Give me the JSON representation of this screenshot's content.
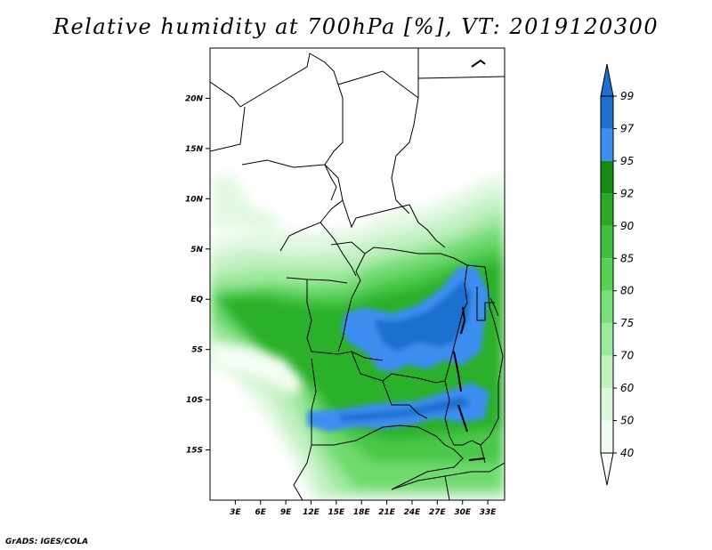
{
  "title": "Relative humidity at 700hPa [%], VT: 2019120300",
  "credit": "GrADS: IGES/COLA",
  "map": {
    "lon_range": [
      0,
      35
    ],
    "lat_range": [
      -20,
      25
    ],
    "lon_ticks": [
      "3E",
      "6E",
      "9E",
      "12E",
      "15E",
      "18E",
      "21E",
      "24E",
      "27E",
      "30E",
      "33E"
    ],
    "lat_ticks": [
      "20N",
      "15N",
      "10N",
      "5N",
      "EQ",
      "5S",
      "10S",
      "15S"
    ]
  },
  "colorbar": {
    "labels": [
      "99",
      "97",
      "95",
      "92",
      "90",
      "85",
      "80",
      "75",
      "70",
      "60",
      "50",
      "40"
    ],
    "colors": [
      "#1e6fd0",
      "#1e6fd0",
      "#3d8ef0",
      "#148a14",
      "#2aa82a",
      "#3fbf3f",
      "#55d255",
      "#7be07b",
      "#9bea9b",
      "#bff2bf",
      "#dcf8dc",
      "#f0fcf0",
      "#ffffff"
    ],
    "triangle_top_color": "#1e6fd0",
    "triangle_bottom_color": "#ffffff"
  }
}
